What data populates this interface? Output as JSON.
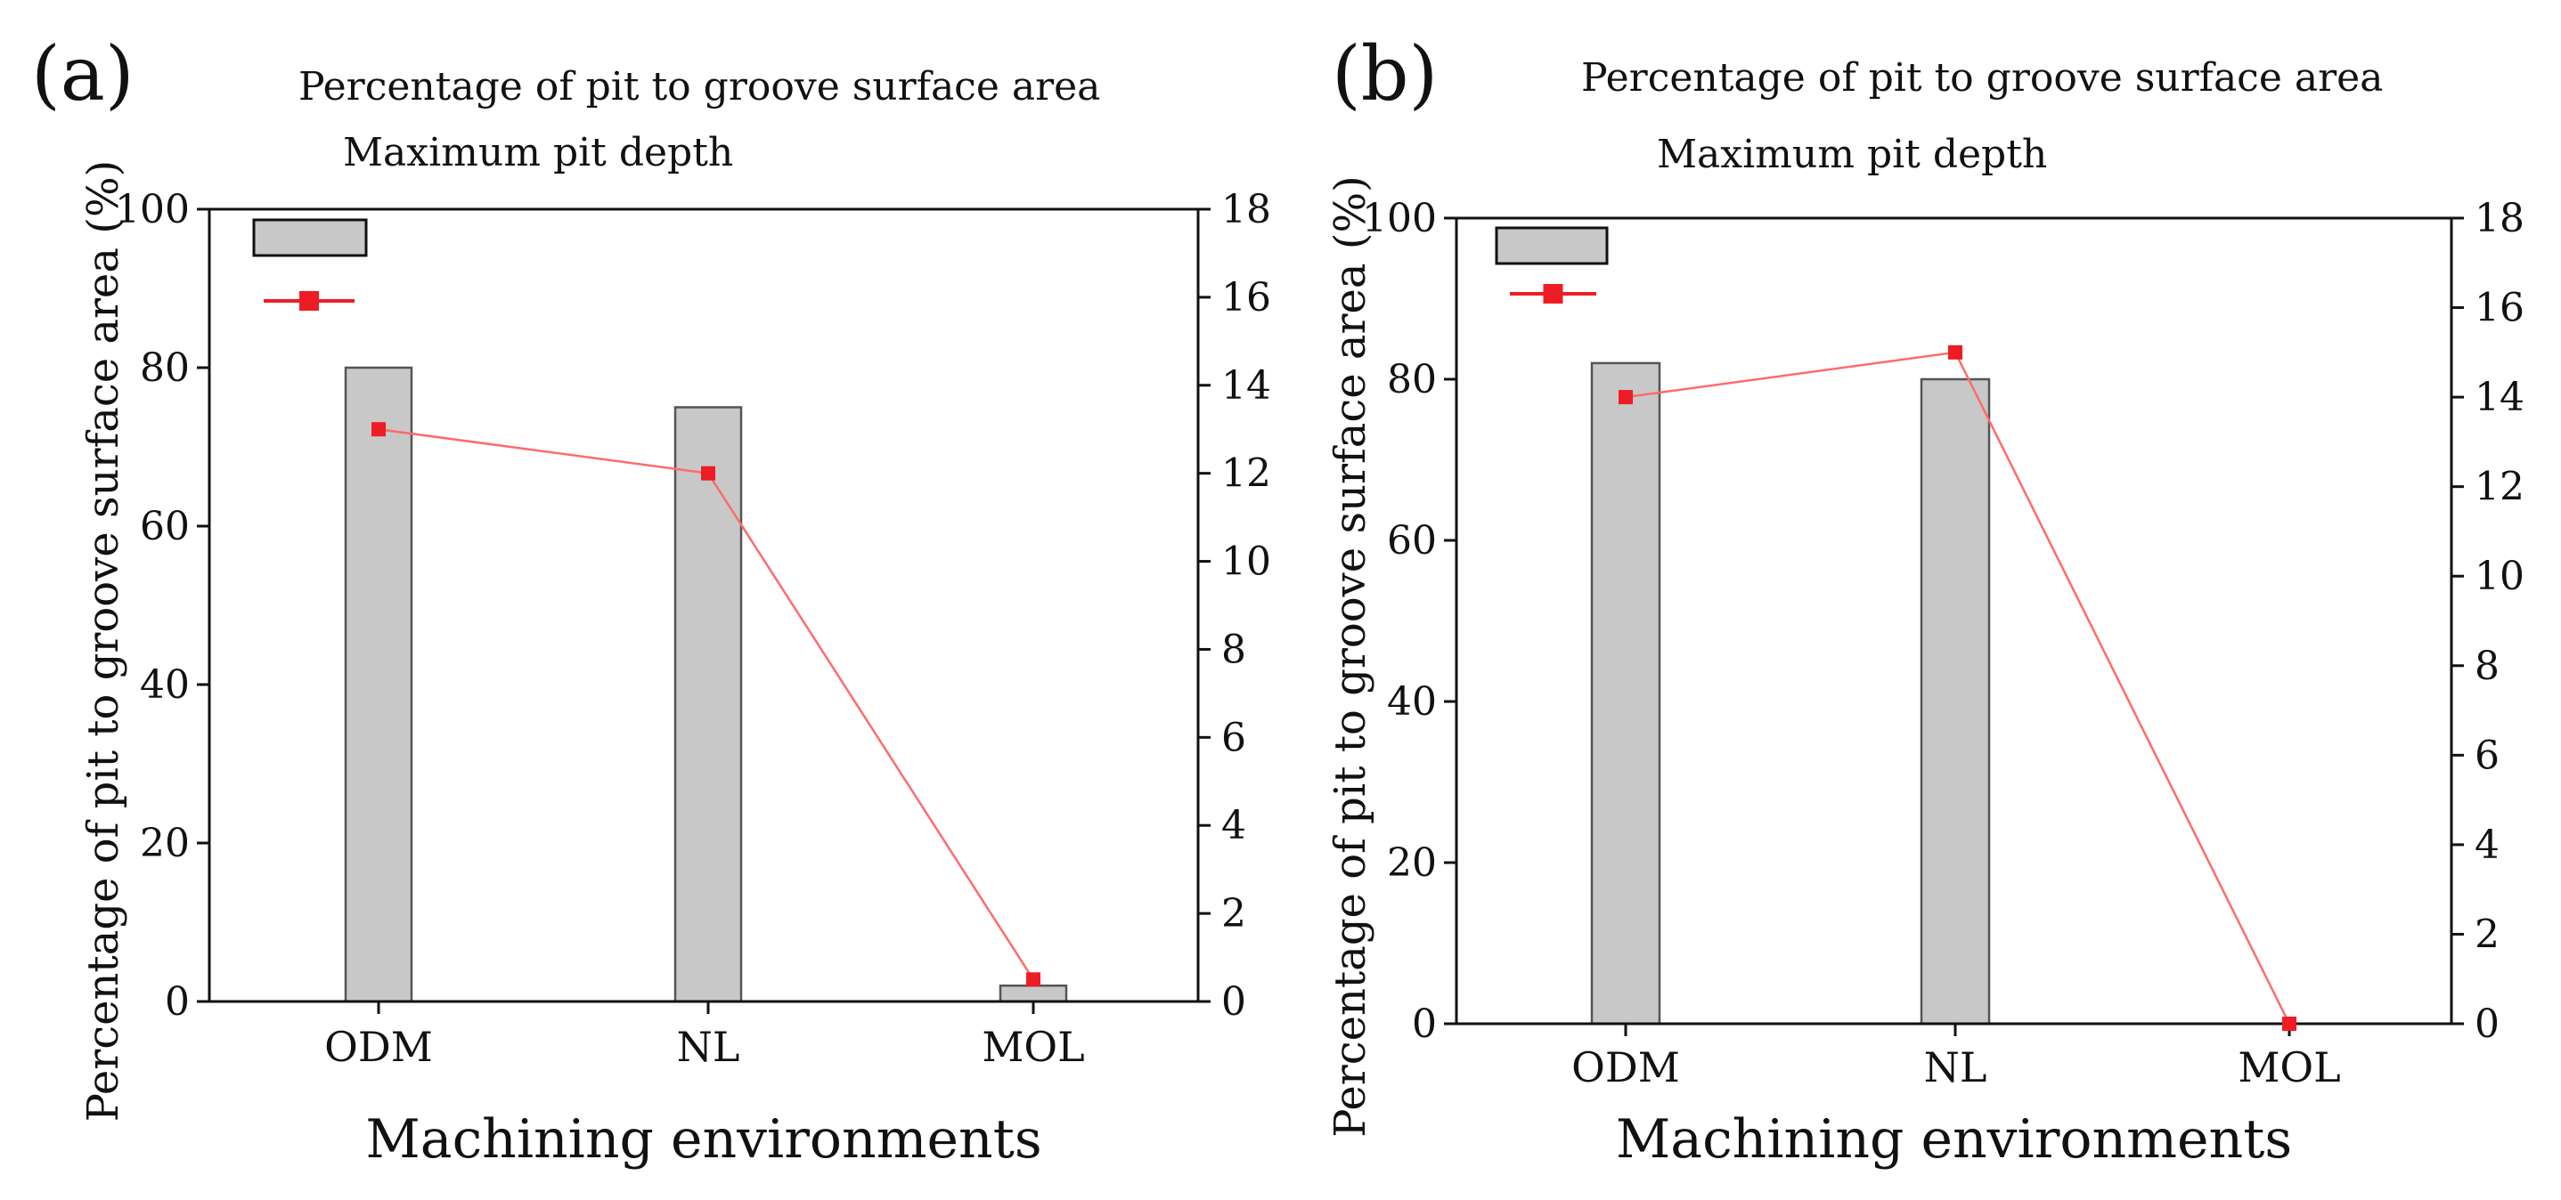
{
  "colors": {
    "bar_fill": "#c8c8c8",
    "bar_stroke": "#555555",
    "line": "#ff6b6b",
    "marker": "#ee1c25",
    "axis": "#111111"
  },
  "chart_data": [
    {
      "type": "bar+line",
      "panel_label": "(a)",
      "legend": [
        "Percentage of pit to groove surface area",
        "Maximum pit depth"
      ],
      "xlabel": "Machining environments",
      "ylabel": "Percentage of pit to groove surface area (%)",
      "ylabel_right": "",
      "categories": [
        "ODM",
        "NL",
        "MOL"
      ],
      "ylim": [
        0,
        100
      ],
      "yticks": [
        0,
        20,
        40,
        60,
        80,
        100
      ],
      "ytick_labels": [
        "0",
        "20",
        "40",
        "60",
        "80",
        "100"
      ],
      "y2lim": [
        0,
        18
      ],
      "y2ticks": [
        0,
        2,
        4,
        6,
        8,
        10,
        12,
        14,
        16,
        18
      ],
      "y2tick_labels": [
        "0",
        "2",
        "4",
        "6",
        "8",
        "10",
        "12",
        "14",
        "16",
        "18"
      ],
      "series": [
        {
          "name": "Percentage of pit to groove surface area",
          "type": "bar",
          "axis": "left",
          "values": [
            80,
            75,
            2
          ]
        },
        {
          "name": "Maximum pit depth",
          "type": "line",
          "axis": "right",
          "values": [
            13,
            12,
            0.5
          ]
        }
      ]
    },
    {
      "type": "bar+line",
      "panel_label": "(b)",
      "legend": [
        "Percentage of pit to groove surface area",
        "Maximum pit depth"
      ],
      "xlabel": "Machining environments",
      "ylabel": "Percentage of pit to groove surface area (%)",
      "ylabel_right": "",
      "categories": [
        "ODM",
        "NL",
        "MOL"
      ],
      "ylim": [
        0,
        100
      ],
      "yticks": [
        0,
        20,
        40,
        60,
        80,
        100
      ],
      "ytick_labels": [
        "0",
        "20",
        "40",
        "60",
        "80",
        "100"
      ],
      "y2lim": [
        0,
        18
      ],
      "y2ticks": [
        0,
        2,
        4,
        6,
        8,
        10,
        12,
        14,
        16,
        18
      ],
      "y2tick_labels": [
        "0",
        "2",
        "4",
        "6",
        "8",
        "10",
        "12",
        "14",
        "16",
        "18"
      ],
      "series": [
        {
          "name": "Percentage of pit to groove surface area",
          "type": "bar",
          "axis": "left",
          "values": [
            82,
            80,
            0
          ]
        },
        {
          "name": "Maximum pit depth",
          "type": "line",
          "axis": "right",
          "values": [
            14,
            15,
            0
          ]
        }
      ]
    }
  ]
}
